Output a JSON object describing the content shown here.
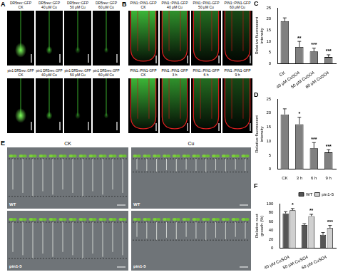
{
  "figure": {
    "panels": {
      "A": {
        "label": "A",
        "rows": [
          {
            "line": "DR5rev::GFP",
            "conditions": [
              "CK",
              "40 μM Cu",
              "50 μM Cu",
              "60 μM Cu"
            ]
          },
          {
            "line": "pin1 DR5rev::GFP",
            "conditions": [
              "CK",
              "40 μM Cu",
              "50 μM Cu",
              "60 μM Cu"
            ]
          }
        ]
      },
      "B": {
        "label": "B",
        "rows": [
          {
            "line": "PIN1::PIN1-GFP",
            "conditions": [
              "CK",
              "40 μM Cu",
              "50 μM Cu",
              "60 μM Cu"
            ]
          },
          {
            "line": "PIN1::PIN1-GFP",
            "conditions": [
              "CK",
              "3 h",
              "6 h",
              "9 h"
            ]
          }
        ]
      },
      "E": {
        "label": "E",
        "columns": [
          "CK",
          "Cu"
        ],
        "rows": [
          "WT",
          "pin1-5"
        ]
      }
    },
    "chart_labels": [
      "C",
      "D",
      "F"
    ]
  },
  "chart_data": [
    {
      "type": "bar",
      "y_label": "Relative fluorescent intensity",
      "categories": [
        "CK",
        "40 μM CuSO4",
        "50 μM CuSO4",
        "60 μM CuSO4"
      ],
      "values": [
        19,
        7.5,
        5.5,
        3
      ],
      "errors": [
        1.5,
        2.5,
        1.5,
        1
      ],
      "annotations": [
        null,
        "**",
        "***",
        "***"
      ],
      "color": "#808080",
      "ylim": [
        0,
        25
      ],
      "yticks": [
        0,
        5,
        10,
        15,
        20,
        25
      ],
      "grid": false
    },
    {
      "type": "bar",
      "y_label": "Relative fluorescent intensity",
      "categories": [
        "CK",
        "3 h",
        "6 h",
        "9 h"
      ],
      "values": [
        19.5,
        16,
        7.5,
        6
      ],
      "errors": [
        2,
        2.5,
        2,
        1
      ],
      "annotations": [
        null,
        "*",
        "***",
        "***"
      ],
      "color": "#808080",
      "ylim": [
        0,
        25
      ],
      "yticks": [
        0,
        5,
        10,
        15,
        20,
        25
      ],
      "grid": false
    },
    {
      "type": "bar",
      "y_label": "Relative root growth (%)",
      "categories": [
        "40 μM CuSO4",
        "50 μM CuSO4",
        "60 μM CuSO4"
      ],
      "series": [
        {
          "name": "WT",
          "color": "#555555",
          "values": [
            78,
            52,
            30
          ],
          "errors": [
            4,
            3,
            5
          ]
        },
        {
          "name": "pin1-5",
          "color": "#d0d0d0",
          "values": [
            85,
            72,
            45
          ],
          "errors": [
            4,
            4,
            6
          ]
        }
      ],
      "annotations": [
        "*",
        "**",
        "***"
      ],
      "legend": "top-right",
      "ylim": [
        0,
        100
      ],
      "yticks": [
        0,
        20,
        40,
        60,
        80,
        100
      ],
      "grid": false
    }
  ]
}
